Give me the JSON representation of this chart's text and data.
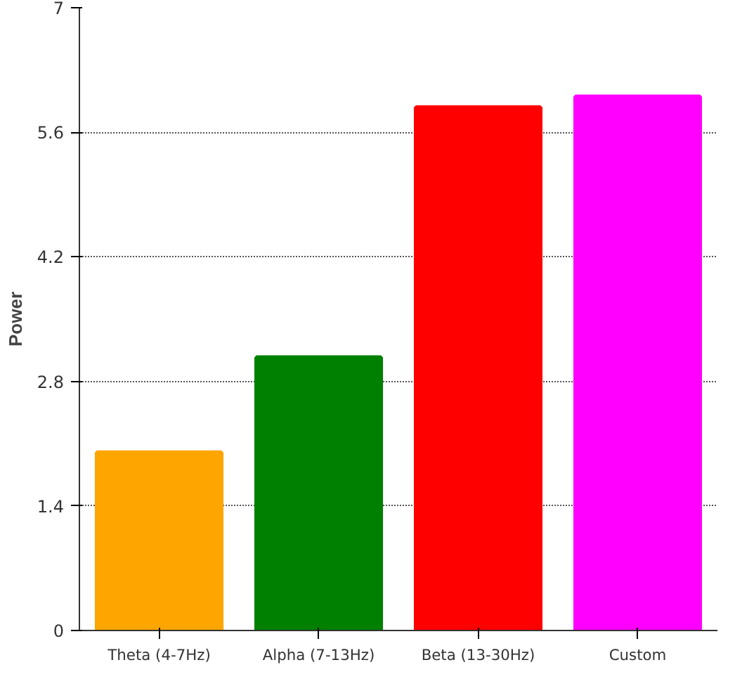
{
  "chart_data": {
    "type": "bar",
    "ylabel": "Power",
    "categories": [
      "Theta (4-7Hz)",
      "Alpha (7-13Hz)",
      "Beta (13-30Hz)",
      "Custom"
    ],
    "values": [
      2.0,
      3.07,
      5.88,
      6.0
    ],
    "colors": [
      "#ffa500",
      "#008000",
      "#ff0000",
      "#ff00ff"
    ],
    "ylim": [
      0,
      7
    ],
    "yticks": [
      0,
      1.4,
      2.8,
      4.2,
      5.6,
      7
    ],
    "grid": "y"
  }
}
